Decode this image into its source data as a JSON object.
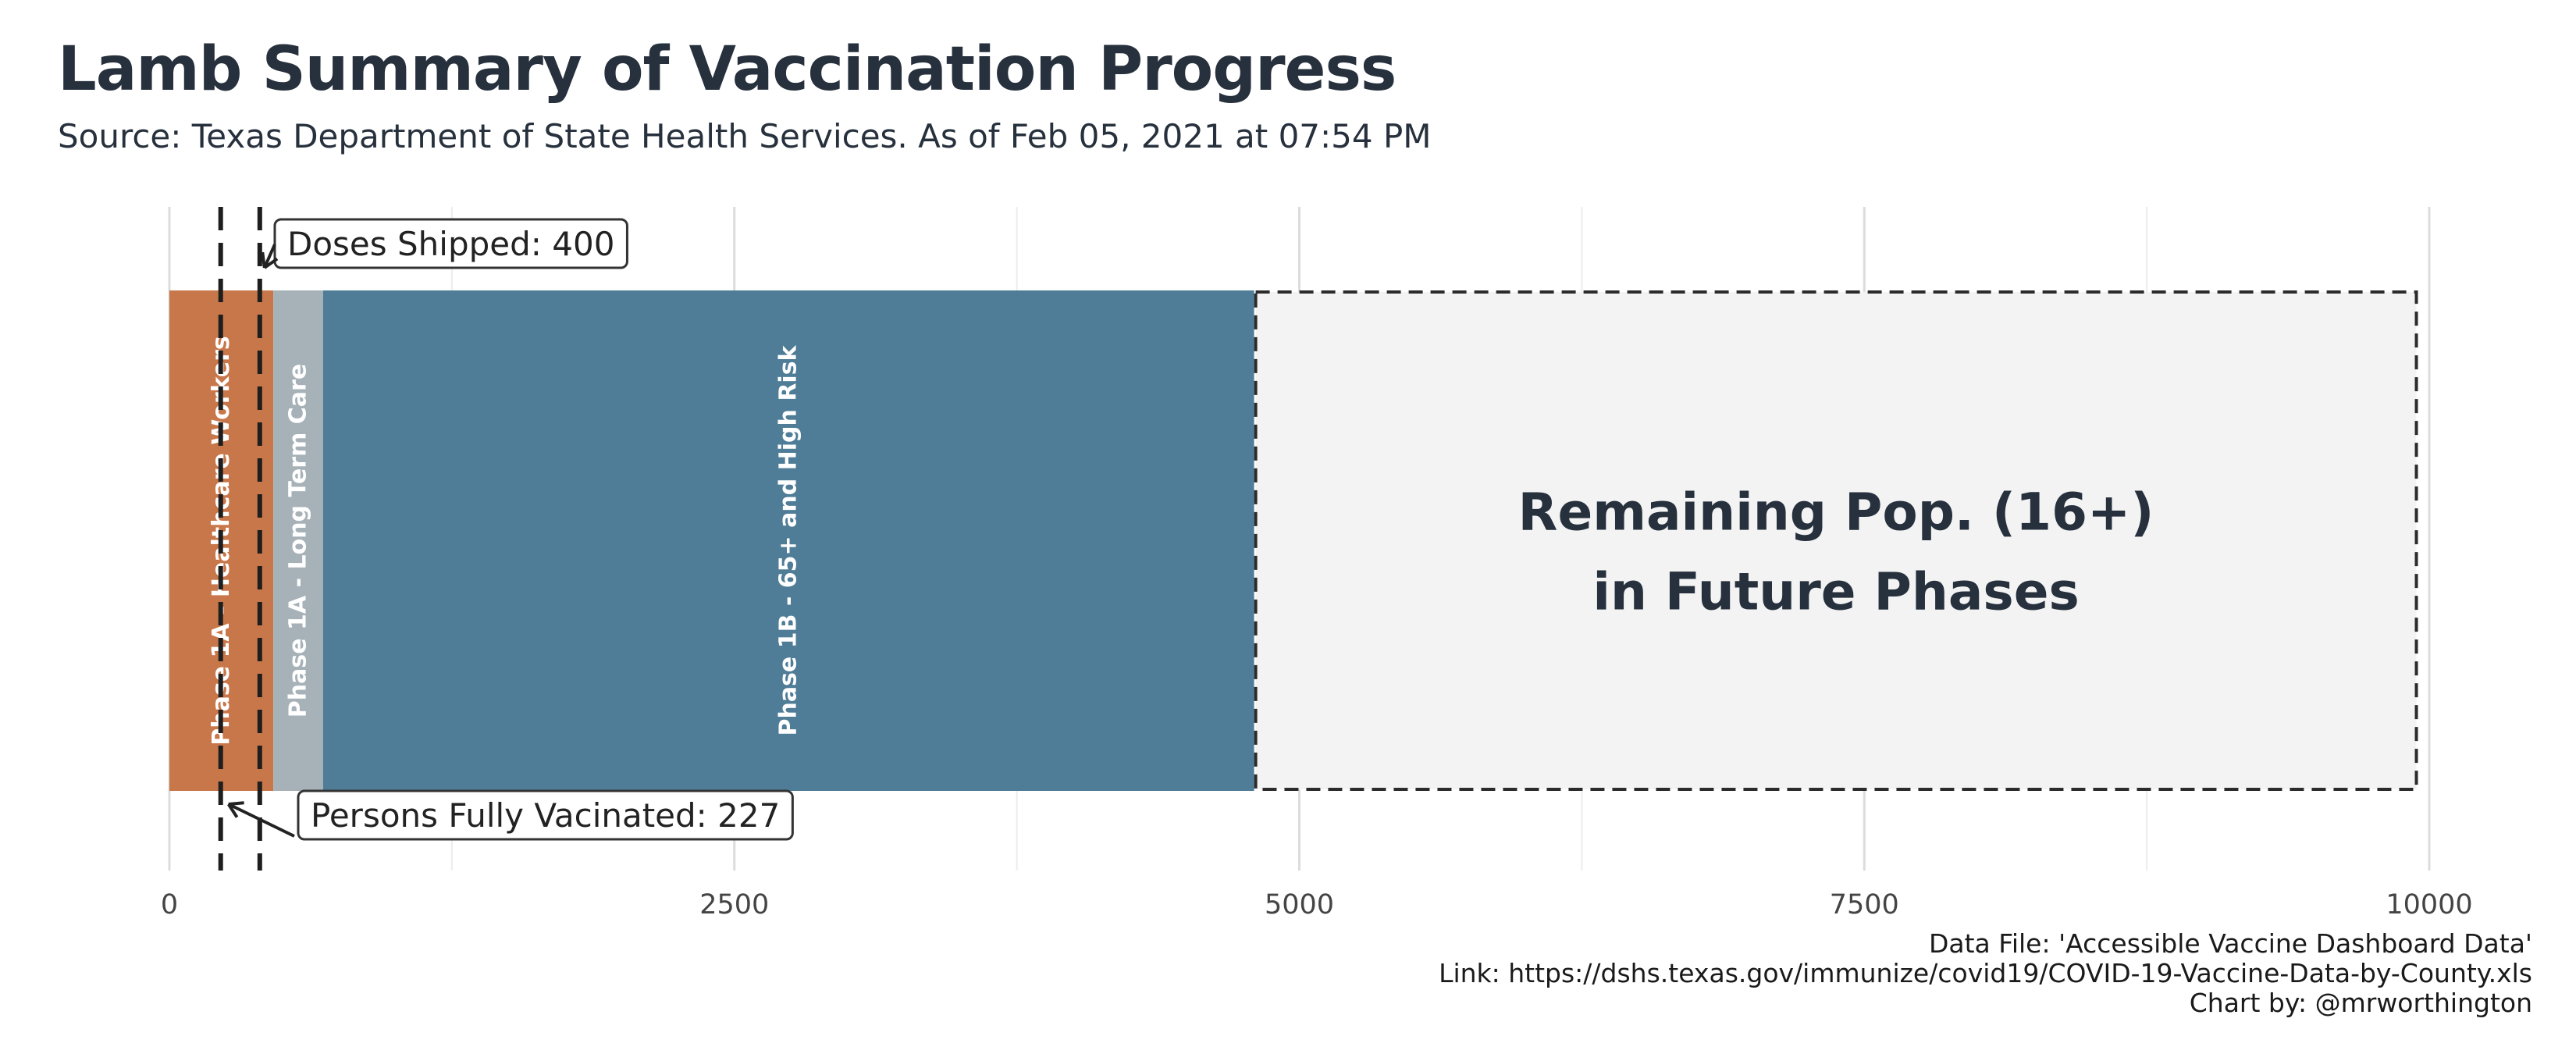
{
  "title": "Lamb Summary of Vaccination Progress",
  "subtitle": "Source: Texas Department of State Health Services. As of Feb 05, 2021 at 07:54 PM",
  "caption": {
    "line1": "Data File: 'Accessible Vaccine Dashboard Data'",
    "line2": "Link: https://dshs.texas.gov/immunize/covid19/COVID-19-Vaccine-Data-by-County.xls",
    "line3": "Chart by: @mrworthington"
  },
  "chart_data": {
    "type": "bar",
    "orientation": "horizontal-stacked",
    "title": "Lamb Summary of Vaccination Progress",
    "xlim": [
      0,
      10000
    ],
    "x_ticks": [
      0,
      2500,
      5000,
      7500,
      10000
    ],
    "grid": "vertical",
    "segments": [
      {
        "label": "Phase 1A - Healthcare Workers",
        "start": 0,
        "end": 460,
        "color": "#c8774a"
      },
      {
        "label": "Phase 1A - Long Term Care",
        "start": 460,
        "end": 680,
        "color": "#a6b1b8"
      },
      {
        "label": "Phase 1B - 65+ and High Risk",
        "start": 680,
        "end": 4800,
        "color": "#4f7d97"
      },
      {
        "label": "Remaining Pop. (16+)\nin Future Phases",
        "start": 4800,
        "end": 9950,
        "color": "#f3f3f3",
        "dashed": true
      }
    ],
    "reference_lines": [
      {
        "label": "Doses Shipped: 400",
        "value": 400
      },
      {
        "label": "Persons Fully Vacinated: 227",
        "value": 227
      }
    ]
  }
}
